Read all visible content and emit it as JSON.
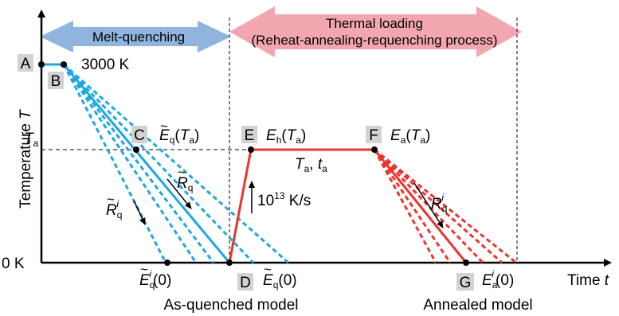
{
  "diagram": {
    "arrows": {
      "melt_quenching": "Melt-quenching",
      "thermal_loading_line1": "Thermal loading",
      "thermal_loading_line2": "(Reheat-annealing-requenching process)"
    },
    "axes": {
      "y_label": "Temperature ",
      "y_label_var": "T",
      "x_label": "Time ",
      "x_label_var": "t",
      "zero_k": "0 K",
      "ta": "T",
      "ta_sub": "a"
    },
    "temperature_3000": "3000 K",
    "points": {
      "A": "A",
      "B": "B",
      "C": "C",
      "D": "D",
      "E": "E",
      "F": "F",
      "G": "G"
    },
    "point_labels": {
      "C_E": "E",
      "C_sub": "q",
      "C_arg": "(",
      "C_argvar": "T",
      "C_argsub": "a",
      "C_close": ")",
      "E_E": "E",
      "E_sub": "h",
      "F_E": "E",
      "F_sub": "a",
      "hold_T": "T",
      "hold_Tsub": "a",
      "hold_sep": ",  ",
      "hold_t": "t",
      "hold_tsub": "a"
    },
    "rates": {
      "Rq": "R",
      "Rq_sub": "q",
      "Rqi": "R",
      "Rqi_sub": "q",
      "Rqi_sup": "i",
      "heating_base": "10",
      "heating_exp": "13",
      "heating_unit": " K/s"
    },
    "bottom_labels": {
      "Eqi0_E": "E",
      "Eqi0_sub": "q",
      "Eqi0_sup": "i",
      "Eq0_E": "E",
      "Eq0_sub": "q",
      "Eai0_E": "E",
      "Eai0_sub": "a",
      "Eai0_sup": "i",
      "zero_arg": "(0)"
    },
    "captions": {
      "as_quenched": "As-quenched model",
      "annealed": "Annealed model"
    },
    "colors": {
      "blue": "#1ea8e0",
      "red": "#e8352e",
      "melt_arrow": "#8fb4de",
      "thermal_arrow": "#f2a6b0"
    }
  }
}
